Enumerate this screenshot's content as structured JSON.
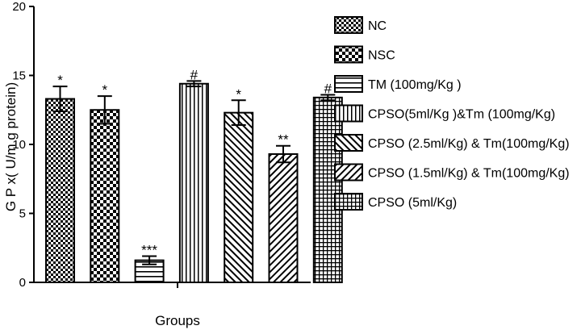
{
  "chart_data": {
    "type": "bar",
    "ylabel": "G P x( U/m g protein)",
    "xlabel": "Groups",
    "ylim": [
      0,
      20
    ],
    "yticks": [
      0,
      5,
      10,
      15,
      20
    ],
    "grid": false,
    "legend_position": "right",
    "categories": [
      "NC",
      "NSC",
      "TM (100mg/Kg )",
      "CPSO(5ml/Kg )&Tm (100mg/Kg)",
      "CPSO (2.5ml/Kg) & Tm(100mg/Kg)",
      "CPSO (1.5ml/Kg) & Tm(100mg/Kg)",
      "CPSO (5ml/Kg)"
    ],
    "values": [
      13.3,
      12.5,
      1.6,
      14.4,
      12.3,
      9.3,
      13.4
    ],
    "errors": [
      0.9,
      1.0,
      0.3,
      0.2,
      0.9,
      0.6,
      0.2
    ],
    "patterns": [
      "checker-fine",
      "checker-coarse",
      "horizontal",
      "vertical",
      "diag-up",
      "diag-down",
      "grid"
    ],
    "significance": [
      "*",
      "*",
      "***",
      "#",
      "*",
      "**",
      "#"
    ]
  }
}
